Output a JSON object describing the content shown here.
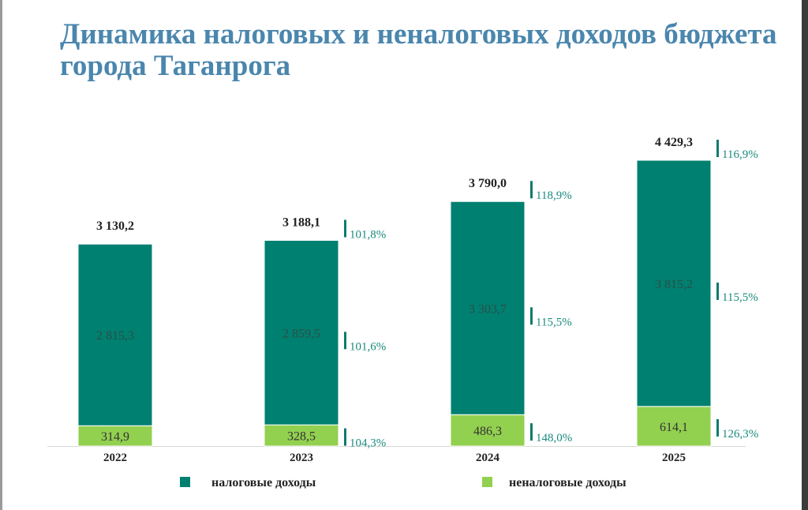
{
  "chart_data": {
    "type": "bar",
    "stacked": true,
    "title": "Динамика налоговых и неналоговых доходов бюджета города Таганрога",
    "categories": [
      "2022",
      "2023",
      "2024",
      "2025"
    ],
    "series": [
      {
        "name": "неналоговые доходы",
        "color": "#92d050",
        "values": [
          314.9,
          328.5,
          486.3,
          614.1
        ],
        "labels": [
          "314,9",
          "328,5",
          "486,3",
          "614,1"
        ],
        "growth": [
          null,
          "104,3%",
          "148,0%",
          "126,3%"
        ]
      },
      {
        "name": "налоговые доходы",
        "color": "#008070",
        "values": [
          2815.3,
          2859.5,
          3303.7,
          3815.2
        ],
        "labels": [
          "2 815,3",
          "2 859,5",
          "3 303,7",
          "3 815,2"
        ],
        "growth": [
          null,
          "101,6%",
          "115,5%",
          "115,5%"
        ]
      }
    ],
    "totals": [
      3130.2,
      3188.1,
      3790.0,
      4429.3
    ],
    "total_labels": [
      "3 130,2",
      "3 188,1",
      "3 790,0",
      "4 429,3"
    ],
    "total_growth": [
      null,
      "101,8%",
      "118,9%",
      "116,9%"
    ],
    "legend": [
      "налоговые доходы",
      "неналоговые доходы"
    ],
    "legend_position": "bottom",
    "grid": false
  },
  "colors": {
    "tax": "#008070",
    "nontax": "#92d050",
    "growth": "#1a8a7e",
    "title": "#4a86ad"
  }
}
